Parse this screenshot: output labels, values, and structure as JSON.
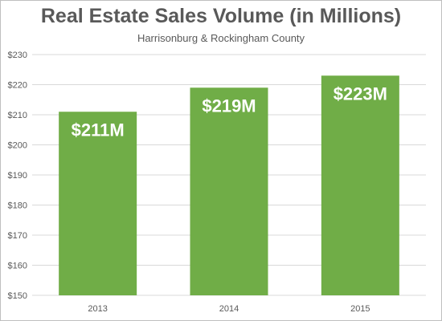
{
  "chart_data": {
    "type": "bar",
    "title": "Real Estate Sales Volume (in Millions)",
    "subtitle": "Harrisonburg & Rockingham County",
    "categories": [
      "2013",
      "2014",
      "2015"
    ],
    "values": [
      211,
      219,
      223
    ],
    "data_labels": [
      "$211M",
      "$219M",
      "$223M"
    ],
    "ylim": [
      150,
      230
    ],
    "yticks": [
      150,
      160,
      170,
      180,
      190,
      200,
      210,
      220,
      230
    ],
    "ytick_labels": [
      "$150",
      "$160",
      "$170",
      "$180",
      "$190",
      "$200",
      "$210",
      "$220",
      "$230"
    ],
    "grid": true,
    "bar_color": "#70ad47",
    "grid_color": "#d9d9d9"
  }
}
